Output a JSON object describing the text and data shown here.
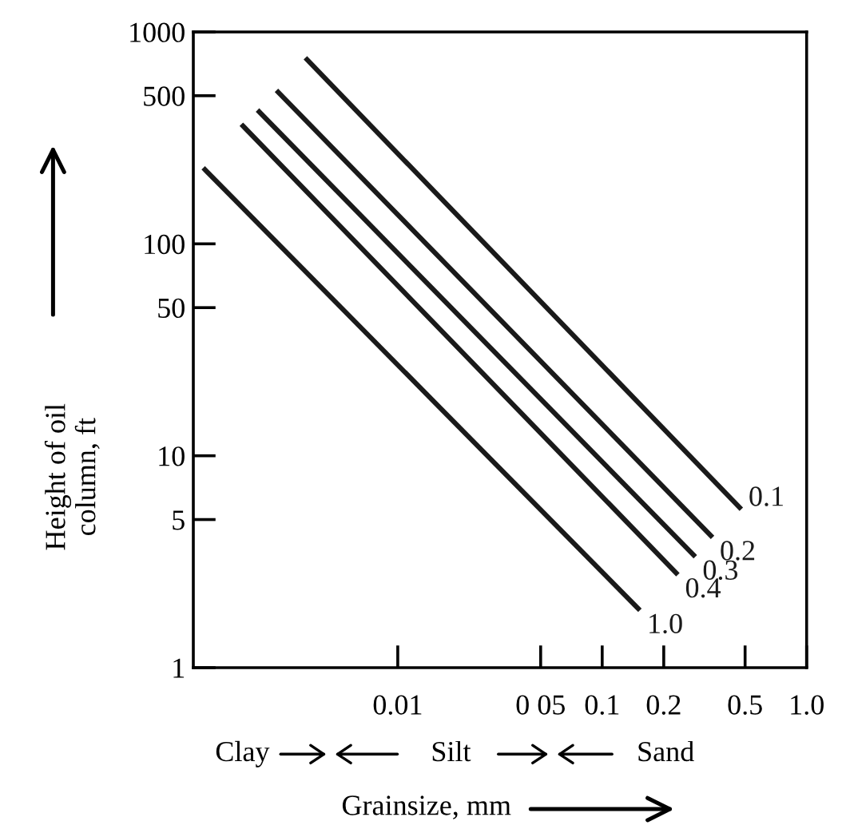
{
  "chart_data": {
    "type": "line",
    "xlabel": "Grainsize, mm",
    "ylabel": "Height of oil\ncolumn, ft",
    "log": "xy",
    "xlim": [
      0.001,
      1.0
    ],
    "xticks": [
      {
        "value": 0.01,
        "label": "0.01"
      },
      {
        "value": 0.05,
        "label": "0 05"
      },
      {
        "value": 0.1,
        "label": "0.1"
      },
      {
        "value": 0.2,
        "label": "0.2"
      },
      {
        "value": 0.5,
        "label": "0.5"
      },
      {
        "value": 1.0,
        "label": "1.0"
      }
    ],
    "ylim": [
      1,
      1000
    ],
    "yticks": [
      1,
      5,
      10,
      50,
      100,
      500,
      1000
    ],
    "grid": false,
    "legend": false,
    "marker": "none",
    "line_style": "solid",
    "series": [
      {
        "name": "0.1",
        "color": "#1a1a1a",
        "x": [
          0.0036,
          0.47
        ],
        "values": [
          740,
          5.7
        ]
      },
      {
        "name": "0.2",
        "color": "#1a1a1a",
        "x": [
          0.0026,
          0.34
        ],
        "values": [
          520,
          4.2
        ]
      },
      {
        "name": "0.3",
        "color": "#1a1a1a",
        "x": [
          0.0021,
          0.28
        ],
        "values": [
          420,
          3.4
        ]
      },
      {
        "name": "0.4",
        "color": "#1a1a1a",
        "x": [
          0.00175,
          0.23
        ],
        "values": [
          360,
          2.8
        ]
      },
      {
        "name": "1.0",
        "color": "#1a1a1a",
        "x": [
          0.00114,
          0.15
        ],
        "values": [
          224,
          1.9
        ]
      }
    ],
    "annotations": [
      "Clay",
      "Silt",
      "Sand"
    ]
  }
}
